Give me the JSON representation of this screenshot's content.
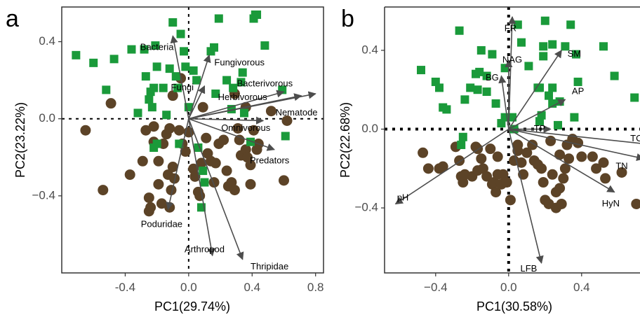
{
  "colors": {
    "group_green": "#1a9a3a",
    "group_brown": "#5c4327",
    "arrow": "#4d4d4d",
    "frame": "#333333"
  },
  "chart_data": [
    {
      "panel": "a",
      "type": "scatter",
      "xlabel": "PC1(29.74%)",
      "ylabel": "PC2(23.22%)",
      "xlim": [
        -0.8,
        0.85
      ],
      "ylim": [
        -0.8,
        0.58
      ],
      "xticks": [
        -0.4,
        0.0,
        0.4,
        0.8
      ],
      "xtick_labels": [
        "-0.4",
        "0.0",
        "0.4",
        "0.8"
      ],
      "yticks": [
        -0.4,
        0.0,
        0.4
      ],
      "ytick_labels": [
        "−0.4",
        "0.0",
        "0.4"
      ],
      "green_points": [
        [
          -0.71,
          0.33
        ],
        [
          -0.6,
          0.29
        ],
        [
          -0.52,
          0.15
        ],
        [
          -0.47,
          0.31
        ],
        [
          -0.36,
          0.36
        ],
        [
          -0.32,
          0.03
        ],
        [
          -0.28,
          0.36
        ],
        [
          -0.27,
          0.22
        ],
        [
          -0.25,
          0.1
        ],
        [
          -0.24,
          0.14
        ],
        [
          -0.23,
          0.06
        ],
        [
          -0.22,
          0.16
        ],
        [
          -0.22,
          -0.15
        ],
        [
          -0.21,
          0.38
        ],
        [
          -0.2,
          -0.13
        ],
        [
          -0.2,
          0.27
        ],
        [
          -0.16,
          0.16
        ],
        [
          -0.14,
          0.02
        ],
        [
          -0.12,
          0.26
        ],
        [
          -0.1,
          0.5
        ],
        [
          -0.08,
          0.22
        ],
        [
          -0.07,
          0.16
        ],
        [
          -0.06,
          -0.13
        ],
        [
          -0.05,
          0.44
        ],
        [
          -0.03,
          0.35
        ],
        [
          -0.02,
          0.27
        ],
        [
          0.0,
          0.06
        ],
        [
          0.03,
          0.25
        ],
        [
          0.05,
          0.2
        ],
        [
          0.06,
          -0.15
        ],
        [
          0.09,
          -0.27
        ],
        [
          0.1,
          -0.33
        ],
        [
          0.08,
          -0.46
        ],
        [
          0.14,
          0.35
        ],
        [
          0.16,
          0.37
        ],
        [
          0.17,
          0.13
        ],
        [
          0.19,
          0.52
        ],
        [
          0.24,
          0.2
        ],
        [
          0.27,
          0.05
        ],
        [
          0.28,
          0.16
        ],
        [
          0.33,
          0.19
        ],
        [
          0.34,
          0.24
        ],
        [
          0.35,
          0.03
        ],
        [
          0.39,
          -0.12
        ],
        [
          0.41,
          0.52
        ],
        [
          0.42,
          0.54
        ],
        [
          0.43,
          0.54
        ],
        [
          0.48,
          0.38
        ],
        [
          0.59,
          0.15
        ],
        [
          0.61,
          -0.09
        ]
      ],
      "brown_points": [
        [
          -0.65,
          -0.06
        ],
        [
          -0.54,
          -0.37
        ],
        [
          -0.49,
          0.08
        ],
        [
          -0.37,
          -0.29
        ],
        [
          -0.29,
          -0.22
        ],
        [
          -0.27,
          -0.06
        ],
        [
          -0.25,
          -0.41
        ],
        [
          -0.25,
          -0.48
        ],
        [
          -0.24,
          -0.46
        ],
        [
          -0.22,
          -0.12
        ],
        [
          -0.22,
          -0.04
        ],
        [
          -0.19,
          -0.22
        ],
        [
          -0.19,
          -0.34
        ],
        [
          -0.17,
          -0.44
        ],
        [
          -0.16,
          -0.13
        ],
        [
          -0.14,
          -0.08
        ],
        [
          -0.13,
          -0.29
        ],
        [
          -0.12,
          -0.05
        ],
        [
          -0.12,
          -0.46
        ],
        [
          -0.11,
          -0.37
        ],
        [
          -0.1,
          0.12
        ],
        [
          -0.1,
          -0.25
        ],
        [
          -0.09,
          -0.31
        ],
        [
          -0.06,
          -0.06
        ],
        [
          -0.05,
          0.21
        ],
        [
          -0.04,
          -0.13
        ],
        [
          -0.02,
          -0.17
        ],
        [
          0.0,
          -0.07
        ],
        [
          0.03,
          -0.26
        ],
        [
          0.04,
          -0.3
        ],
        [
          0.06,
          -0.38
        ],
        [
          0.07,
          -0.4
        ],
        [
          0.08,
          -0.23
        ],
        [
          0.09,
          0.06
        ],
        [
          0.11,
          -0.1
        ],
        [
          0.12,
          -0.18
        ],
        [
          0.14,
          -0.22
        ],
        [
          0.16,
          -0.33
        ],
        [
          0.17,
          -0.23
        ],
        [
          0.19,
          -0.13
        ],
        [
          0.22,
          -0.11
        ],
        [
          0.24,
          -0.27
        ],
        [
          0.25,
          -0.35
        ],
        [
          0.27,
          -0.33
        ],
        [
          0.29,
          0.13
        ],
        [
          0.29,
          -0.37
        ],
        [
          0.31,
          -0.05
        ],
        [
          0.32,
          -0.11
        ],
        [
          0.33,
          -0.19
        ],
        [
          0.36,
          -0.16
        ],
        [
          0.36,
          0.06
        ],
        [
          0.37,
          -0.2
        ],
        [
          0.39,
          -0.34
        ],
        [
          0.39,
          -0.24
        ],
        [
          0.41,
          -0.06
        ],
        [
          0.43,
          -0.16
        ],
        [
          0.44,
          -0.13
        ],
        [
          0.52,
          0.04
        ],
        [
          0.6,
          -0.32
        ],
        [
          0.62,
          -0.01
        ]
      ],
      "vectors": [
        {
          "label": "Bacteria",
          "x": -0.1,
          "y": 0.43,
          "lx": -0.2,
          "ly": 0.37
        },
        {
          "label": "Fungivorous",
          "x": 0.13,
          "y": 0.33,
          "lx": 0.32,
          "ly": 0.29
        },
        {
          "label": "Bacterivorous",
          "x": 0.6,
          "y": 0.14,
          "lx": 0.48,
          "ly": 0.18
        },
        {
          "label": "Fungi",
          "x": 0.1,
          "y": 0.17,
          "lx": -0.04,
          "ly": 0.16
        },
        {
          "label": "Herbivorous",
          "x": 0.71,
          "y": 0.12,
          "lx": 0.34,
          "ly": 0.11
        },
        {
          "label": "Nematode",
          "x": 0.8,
          "y": 0.13,
          "lx": 0.68,
          "ly": 0.03
        },
        {
          "label": "Omnivorous",
          "x": 0.47,
          "y": -0.01,
          "lx": 0.36,
          "ly": -0.05
        },
        {
          "label": "Predators",
          "x": 0.54,
          "y": -0.16,
          "lx": 0.51,
          "ly": -0.22
        },
        {
          "label": "Poduridae",
          "x": -0.13,
          "y": -0.47,
          "lx": -0.17,
          "ly": -0.55
        },
        {
          "label": "Arthropod",
          "x": 0.15,
          "y": -0.71,
          "lx": 0.1,
          "ly": -0.68
        },
        {
          "label": "Thripidae",
          "x": 0.34,
          "y": -0.73,
          "lx": 0.51,
          "ly": -0.77
        }
      ]
    },
    {
      "panel": "b",
      "type": "scatter",
      "xlabel": "PC1(30.58%)",
      "ylabel": "PC2(22.68%)",
      "xlim": [
        -0.68,
        0.72
      ],
      "ylim": [
        -0.73,
        0.62
      ],
      "xticks": [
        -0.4,
        0.0,
        0.4
      ],
      "xtick_labels": [
        "−0.4",
        "0.0",
        "0.4"
      ],
      "yticks": [
        -0.4,
        0.0,
        0.4
      ],
      "ytick_labels": [
        "−0.4",
        "0.0",
        "0.4"
      ],
      "green_points": [
        [
          -0.48,
          0.3
        ],
        [
          -0.4,
          0.24
        ],
        [
          -0.38,
          0.21
        ],
        [
          -0.36,
          0.11
        ],
        [
          -0.34,
          0.1
        ],
        [
          -0.27,
          0.5
        ],
        [
          -0.24,
          0.15
        ],
        [
          -0.26,
          -0.08
        ],
        [
          -0.25,
          -0.04
        ],
        [
          -0.21,
          0.21
        ],
        [
          -0.18,
          0.28
        ],
        [
          -0.17,
          0.2
        ],
        [
          -0.15,
          0.4
        ],
        [
          -0.16,
          0.29
        ],
        [
          -0.12,
          0.27
        ],
        [
          -0.12,
          0.19
        ],
        [
          -0.09,
          0.38
        ],
        [
          -0.07,
          0.13
        ],
        [
          -0.04,
          0.03
        ],
        [
          -0.02,
          0.06
        ],
        [
          -0.02,
          0.31
        ],
        [
          0.02,
          0.06
        ],
        [
          0.03,
          0.0
        ],
        [
          0.05,
          0.53
        ],
        [
          0.07,
          0.44
        ],
        [
          0.11,
          0.32
        ],
        [
          0.17,
          0.21
        ],
        [
          0.16,
          0.21
        ],
        [
          0.17,
          0.04
        ],
        [
          0.18,
          0.07
        ],
        [
          0.19,
          0.42
        ],
        [
          0.19,
          0.37
        ],
        [
          0.2,
          0.55
        ],
        [
          0.22,
          0.17
        ],
        [
          0.24,
          0.21
        ],
        [
          0.24,
          0.43
        ],
        [
          0.24,
          0.13
        ],
        [
          0.27,
          0.02
        ],
        [
          0.28,
          0.14
        ],
        [
          0.31,
          0.42
        ],
        [
          0.34,
          0.53
        ],
        [
          0.36,
          0.06
        ],
        [
          0.37,
          0.38
        ],
        [
          0.38,
          0.24
        ],
        [
          0.52,
          0.42
        ],
        [
          0.58,
          0.27
        ],
        [
          0.69,
          0.16
        ]
      ],
      "brown_points": [
        [
          -0.47,
          -0.12
        ],
        [
          -0.44,
          -0.2
        ],
        [
          -0.38,
          -0.2
        ],
        [
          -0.36,
          -0.19
        ],
        [
          -0.29,
          -0.09
        ],
        [
          -0.27,
          -0.16
        ],
        [
          -0.26,
          -0.24
        ],
        [
          -0.25,
          -0.27
        ],
        [
          -0.24,
          -0.23
        ],
        [
          -0.2,
          -0.24
        ],
        [
          -0.18,
          -0.09
        ],
        [
          -0.17,
          -0.1
        ],
        [
          -0.17,
          -0.21
        ],
        [
          -0.15,
          -0.15
        ],
        [
          -0.14,
          -0.2
        ],
        [
          -0.12,
          -0.24
        ],
        [
          -0.1,
          -0.1
        ],
        [
          -0.09,
          -0.28
        ],
        [
          -0.08,
          -0.27
        ],
        [
          -0.07,
          -0.32
        ],
        [
          -0.06,
          -0.14
        ],
        [
          -0.06,
          -0.23
        ],
        [
          -0.04,
          -0.28
        ],
        [
          -0.03,
          -0.23
        ],
        [
          -0.01,
          -0.27
        ],
        [
          0.01,
          -0.36
        ],
        [
          0.03,
          -0.16
        ],
        [
          0.05,
          -0.08
        ],
        [
          0.05,
          -0.11
        ],
        [
          0.07,
          -0.17
        ],
        [
          0.08,
          -0.23
        ],
        [
          0.1,
          -0.12
        ],
        [
          0.13,
          -0.08
        ],
        [
          0.14,
          -0.16
        ],
        [
          0.16,
          -0.18
        ],
        [
          0.18,
          -0.2
        ],
        [
          0.19,
          -0.27
        ],
        [
          0.2,
          -0.36
        ],
        [
          0.22,
          -0.38
        ],
        [
          0.23,
          -0.06
        ],
        [
          0.24,
          -0.23
        ],
        [
          0.26,
          -0.32
        ],
        [
          0.26,
          -0.4
        ],
        [
          0.28,
          -0.3
        ],
        [
          0.28,
          -0.13
        ],
        [
          0.29,
          -0.38
        ],
        [
          0.3,
          -0.25
        ],
        [
          0.31,
          -0.2
        ],
        [
          0.32,
          -0.08
        ],
        [
          0.33,
          -0.15
        ],
        [
          0.35,
          -0.05
        ],
        [
          0.38,
          -0.07
        ],
        [
          0.4,
          -0.14
        ],
        [
          0.46,
          -0.14
        ],
        [
          0.48,
          -0.2
        ],
        [
          0.52,
          -0.17
        ],
        [
          0.53,
          -0.25
        ],
        [
          0.62,
          -0.22
        ],
        [
          0.7,
          -0.38
        ]
      ],
      "vectors": [
        {
          "label": "FR",
          "x": 0.02,
          "y": 0.57,
          "lx": 0.01,
          "ly": 0.51
        },
        {
          "label": "NAG",
          "x": 0.0,
          "y": 0.35,
          "lx": 0.02,
          "ly": 0.35
        },
        {
          "label": "SM",
          "x": 0.29,
          "y": 0.4,
          "lx": 0.36,
          "ly": 0.38
        },
        {
          "label": "BG",
          "x": -0.04,
          "y": 0.27,
          "lx": -0.09,
          "ly": 0.26
        },
        {
          "label": "AP",
          "x": 0.31,
          "y": 0.15,
          "lx": 0.38,
          "ly": 0.19
        },
        {
          "label": "TP",
          "x": 0.23,
          "y": 0.0,
          "lx": 0.17,
          "ly": 0.0
        },
        {
          "label": "TC",
          "x": 0.8,
          "y": -0.08,
          "lx": 0.7,
          "ly": -0.05
        },
        {
          "label": "TN",
          "x": 0.74,
          "y": -0.15,
          "lx": 0.62,
          "ly": -0.19
        },
        {
          "label": "HyN",
          "x": 0.58,
          "y": -0.32,
          "lx": 0.56,
          "ly": -0.38
        },
        {
          "label": "pH",
          "x": -0.62,
          "y": -0.38,
          "lx": -0.58,
          "ly": -0.35
        },
        {
          "label": "LFB",
          "x": 0.18,
          "y": -0.68,
          "lx": 0.11,
          "ly": -0.71
        }
      ]
    }
  ],
  "panels": [
    {
      "letter": "a"
    },
    {
      "letter": "b"
    }
  ]
}
